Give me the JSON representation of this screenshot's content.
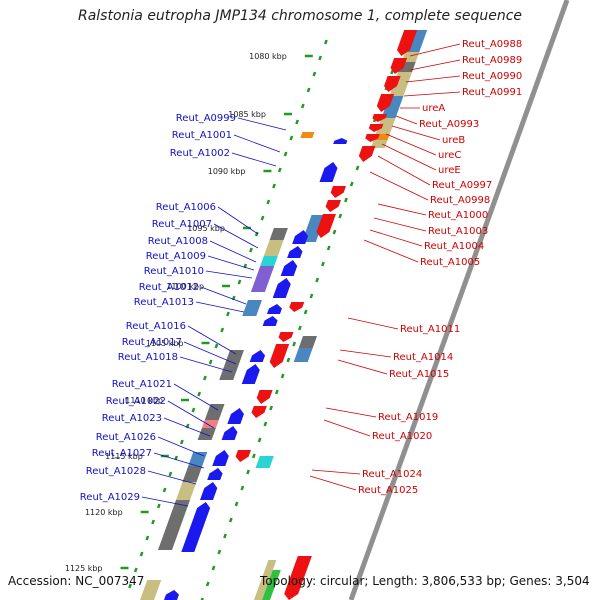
{
  "title": "Ralstonia eutropha JMP134 chromosome 1, complete sequence",
  "footer": {
    "accession": "Accession: NC_007347",
    "topology": "Topology: circular; Length: 3,806,533 bp; Genes: 3,504"
  },
  "colors": {
    "forward_gene": "#1a1aee",
    "reverse_gene": "#ee1111",
    "forward_label": "#1010c8",
    "reverse_label": "#d00000",
    "backbone": "#909090",
    "tick": "#229922",
    "cog_blue": "#4a86c0",
    "cog_gray": "#6e6e6e",
    "cog_cyan": "#2ad4d4",
    "cog_purple": "#8060d0",
    "cog_khaki": "#c8be82",
    "cog_orange": "#f08a12",
    "cog_pink": "#f08080",
    "cog_green": "#30c040"
  },
  "ticks": [
    "1080 kbp",
    "1085 kbp",
    "1090 kbp",
    "1095 kbp",
    "1100 kbp",
    "1105 kbp",
    "1110 kbp",
    "1115 kbp",
    "1120 kbp",
    "1125 kbp"
  ],
  "forward_genes": [
    "Reut_A0999",
    "Reut_A1001",
    "Reut_A1002",
    "Reut_A1006",
    "Reut_A1007",
    "Reut_A1008",
    "Reut_A1009",
    "Reut_A1010",
    "Reut_A1012",
    "Reut_A1013",
    "Reut_A1016",
    "Reut_A1017",
    "Reut_A1018",
    "Reut_A1021",
    "Reut_A1022",
    "Reut_A1023",
    "Reut_A1026",
    "Reut_A1027",
    "Reut_A1028",
    "Reut_A1029"
  ],
  "reverse_genes": [
    "Reut_A0988",
    "Reut_A0989",
    "Reut_A0990",
    "Reut_A0991",
    "ureA",
    "Reut_A0993",
    "ureB",
    "ureC",
    "ureE",
    "Reut_A0997",
    "Reut_A0998",
    "Reut_A1000",
    "Reut_A1003",
    "Reut_A1004",
    "Reut_A1005",
    "Reut_A1011",
    "Reut_A1014",
    "Reut_A1015",
    "Reut_A1019",
    "Reut_A1020",
    "Reut_A1024",
    "Reut_A1025"
  ]
}
